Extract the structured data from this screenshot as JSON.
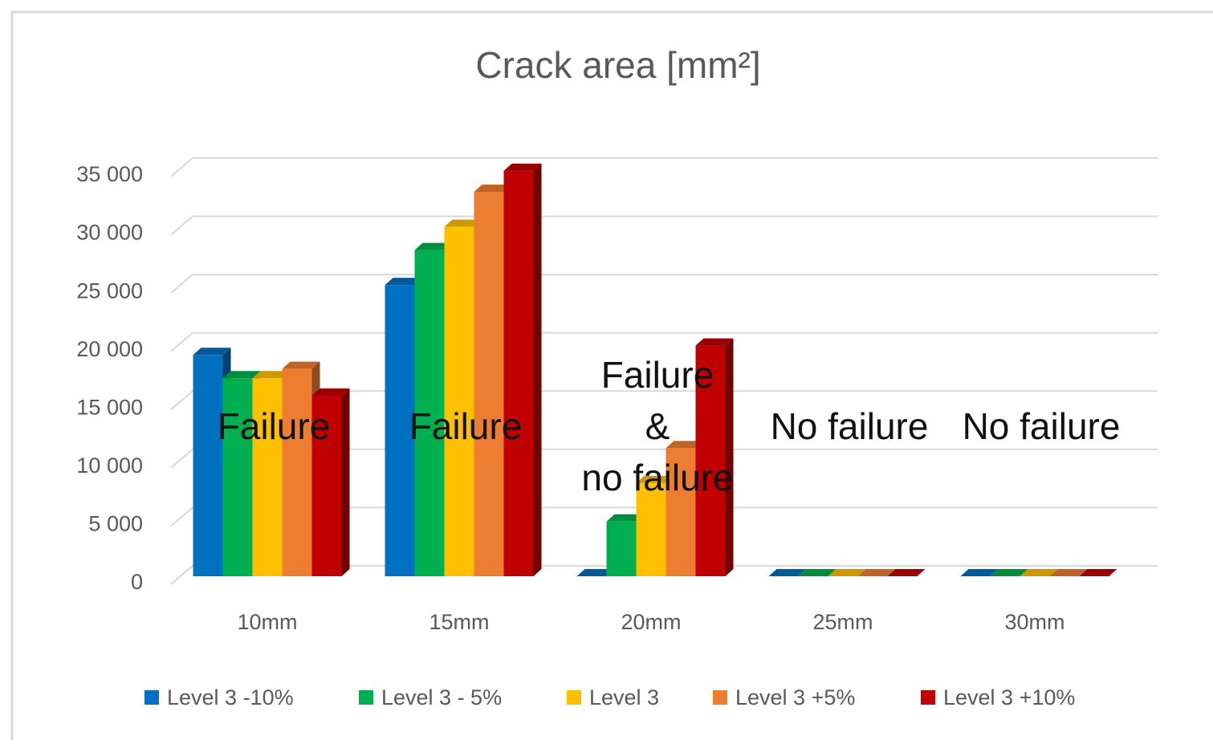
{
  "chart_data": {
    "type": "bar3d",
    "title": "Crack area [mm²]",
    "categories": [
      "10mm",
      "15mm",
      "20mm",
      "25mm",
      "30mm"
    ],
    "series": [
      {
        "name": "Level 3 -10%",
        "color": "#0070c0",
        "values": [
          19000,
          25000,
          0,
          0,
          0
        ]
      },
      {
        "name": "Level 3 - 5%",
        "color": "#00b050",
        "values": [
          17000,
          28000,
          4700,
          0,
          0
        ]
      },
      {
        "name": "Level 3",
        "color": "#ffc000",
        "values": [
          17000,
          30000,
          8000,
          0,
          0
        ]
      },
      {
        "name": "Level 3 +5%",
        "color": "#ed7d31",
        "values": [
          17800,
          33000,
          11000,
          0,
          0
        ]
      },
      {
        "name": "Level 3 +10%",
        "color": "#c00000",
        "values": [
          15500,
          34800,
          19800,
          0,
          0
        ]
      }
    ],
    "ylim": [
      0,
      35000
    ],
    "yticks": [
      0,
      {
        "value": 5000,
        "label": "5 000"
      },
      {
        "value": 10000,
        "label": "10 000"
      },
      {
        "value": 15000,
        "label": "15 000"
      },
      {
        "value": 20000,
        "label": "20 000"
      },
      {
        "value": 25000,
        "label": "25 000"
      },
      {
        "value": 30000,
        "label": "30 000"
      },
      {
        "value": 35000,
        "label": "35 000"
      }
    ],
    "grid": true,
    "legend": "bottom",
    "annotations": [
      {
        "category": 0,
        "lines": [
          "Failure"
        ]
      },
      {
        "category": 1,
        "lines": [
          "Failure"
        ]
      },
      {
        "category": 2,
        "lines": [
          "Failure",
          "&",
          "no failure"
        ]
      },
      {
        "category": 3,
        "lines": [
          "No failure"
        ]
      },
      {
        "category": 4,
        "lines": [
          "No failure"
        ]
      }
    ]
  }
}
